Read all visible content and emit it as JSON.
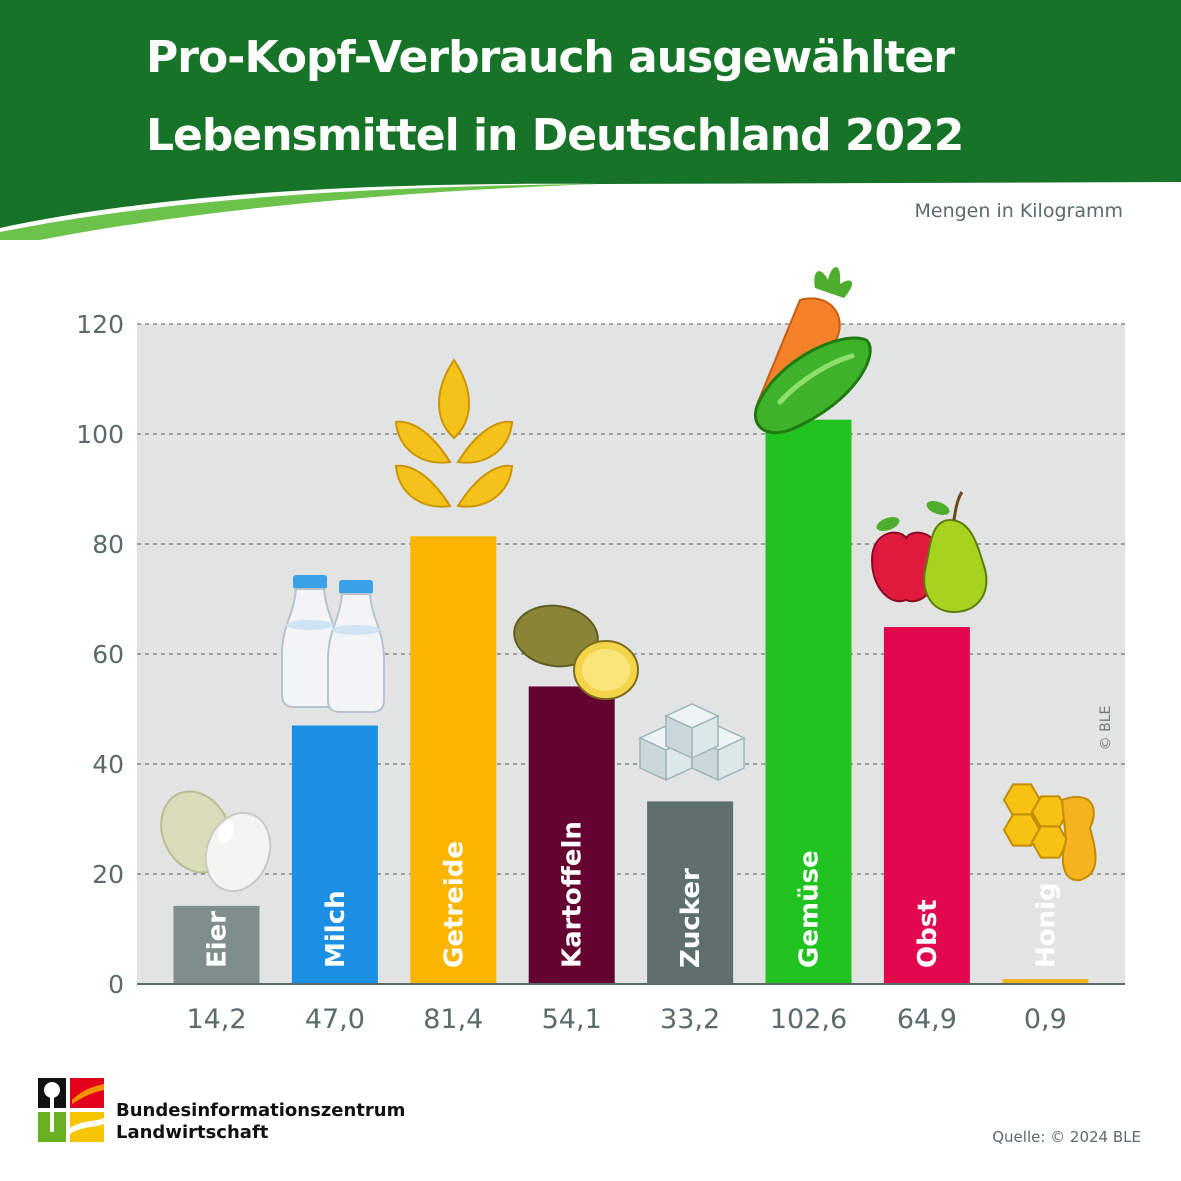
{
  "header": {
    "title_line_1": "Pro-Kopf-Verbrauch ausgewählter",
    "title_line_2": "Lebensmittel in Deutschland 2022",
    "unit_note": "Mengen in Kilogramm"
  },
  "colors": {
    "header_green": "#167327",
    "swoosh_green": "#6cc24a",
    "plot_background": "#e2e3e3",
    "axis_text": "#5b6a6a"
  },
  "chart_data": {
    "type": "bar",
    "title": "Pro-Kopf-Verbrauch ausgewählter Lebensmittel in Deutschland 2022",
    "ylabel": "Mengen in Kilogramm",
    "xlabel": "",
    "ylim": [
      0,
      120
    ],
    "yticks": [
      "0",
      "20",
      "40",
      "60",
      "80",
      "100",
      "120"
    ],
    "grid": true,
    "categories": [
      "Eier",
      "Milch",
      "Getreide",
      "Kartoffeln",
      "Zucker",
      "Gemüse",
      "Obst",
      "Honig"
    ],
    "values": [
      14.2,
      47.0,
      81.4,
      54.1,
      33.2,
      102.6,
      64.9,
      0.9
    ],
    "value_labels": [
      "14,2",
      "47,0",
      "81,4",
      "54,1",
      "33,2",
      "102,6",
      "64,9",
      "0,9"
    ],
    "bar_colors": [
      "#7f8d8b",
      "#1a8fe3",
      "#fbb400",
      "#650330",
      "#5f6f6d",
      "#20c320",
      "#e2084d",
      "#f5b31e"
    ],
    "label_colors": [
      "#ffffff",
      "#ffffff",
      "#ffffff",
      "#ffffff",
      "#ffffff",
      "#ffffff",
      "#ffffff",
      "#5b6a6a"
    ],
    "icons": [
      "eggs-icon",
      "milk-bottles-icon",
      "wheat-icon",
      "potatoes-icon",
      "sugar-cubes-icon",
      "carrot-cucumber-icon",
      "apple-pear-icon",
      "honey-icon"
    ]
  },
  "footer": {
    "copyright": "© BLE",
    "org_line_1": "Bundesinformationszentrum",
    "org_line_2": "Landwirtschaft",
    "source": "Quelle: © 2024 BLE"
  }
}
